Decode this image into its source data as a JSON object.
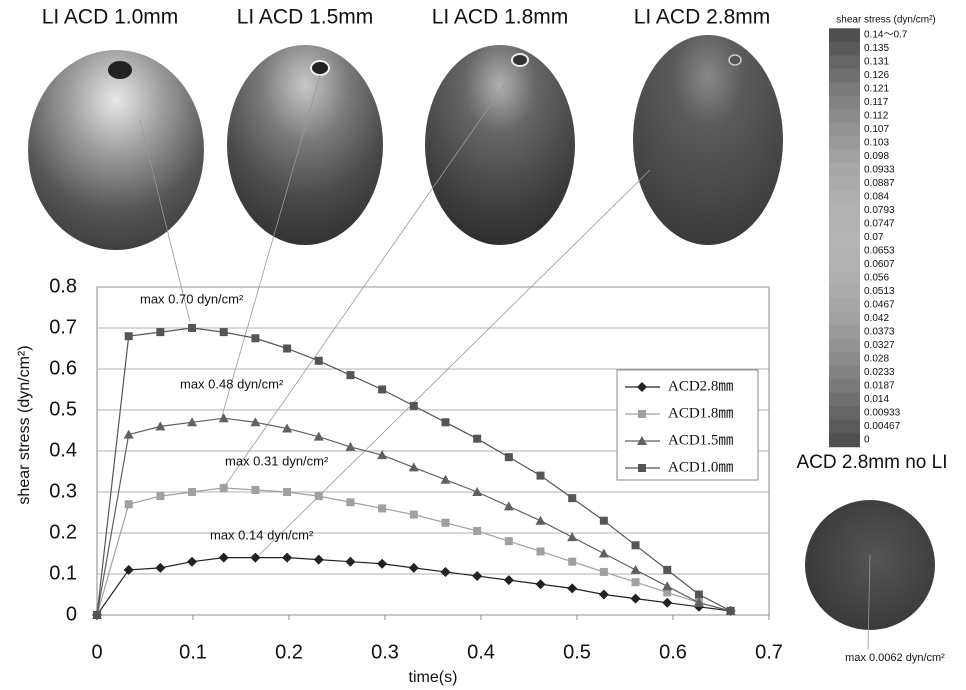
{
  "panels": {
    "titles": [
      "LI ACD 1.0mm",
      "LI ACD 1.5mm",
      "LI ACD 1.8mm",
      "LI ACD 2.8mm"
    ],
    "no_li_title": "ACD 2.8mm no LI",
    "no_li_max": "max 0.0062 dyn/cm²"
  },
  "colorbar": {
    "title": "shear stress (dyn/cm²)",
    "labels": [
      "0.14～0.7",
      "0.135",
      "0.131",
      "0.126",
      "0.121",
      "0.117",
      "0.112",
      "0.107",
      "0.103",
      "0.098",
      "0.0933",
      "0.0887",
      "0.084",
      "0.0793",
      "0.0747",
      "0.07",
      "0.0653",
      "0.0607",
      "0.056",
      "0.0513",
      "0.0467",
      "0.042",
      "0.0373",
      "0.0327",
      "0.028",
      "0.0233",
      "0.0187",
      "0.014",
      "0.00933",
      "0.00467",
      "0"
    ]
  },
  "chart_data": {
    "type": "line",
    "xlabel": "time(s)",
    "ylabel": "shear stress (dyn/cm²)",
    "x": [
      0,
      0.033,
      0.066,
      0.099,
      0.132,
      0.165,
      0.198,
      0.231,
      0.264,
      0.297,
      0.33,
      0.363,
      0.396,
      0.429,
      0.462,
      0.495,
      0.528,
      0.561,
      0.594,
      0.627,
      0.66
    ],
    "xlim": [
      0,
      0.7
    ],
    "xticks": [
      0,
      0.1,
      0.2,
      0.3,
      0.4,
      0.5,
      0.6,
      0.7
    ],
    "ylim": [
      0,
      0.8
    ],
    "yticks": [
      0,
      0.1,
      0.2,
      0.3,
      0.4,
      0.5,
      0.6,
      0.7,
      0.8
    ],
    "grid": true,
    "series": [
      {
        "name": "ACD2.8㎜",
        "color": "#222222",
        "marker": "diamond",
        "values": [
          0,
          0.11,
          0.115,
          0.13,
          0.14,
          0.14,
          0.14,
          0.135,
          0.13,
          0.125,
          0.115,
          0.105,
          0.095,
          0.085,
          0.075,
          0.065,
          0.05,
          0.04,
          0.03,
          0.02,
          0.01
        ]
      },
      {
        "name": "ACD1.8㎜",
        "color": "#a0a0a0",
        "marker": "square",
        "values": [
          0,
          0.27,
          0.29,
          0.3,
          0.31,
          0.305,
          0.3,
          0.29,
          0.275,
          0.26,
          0.245,
          0.225,
          0.205,
          0.18,
          0.155,
          0.13,
          0.105,
          0.08,
          0.055,
          0.03,
          0.01
        ]
      },
      {
        "name": "ACD1.5㎜",
        "color": "#606060",
        "marker": "triangle",
        "values": [
          0,
          0.44,
          0.46,
          0.47,
          0.48,
          0.47,
          0.455,
          0.435,
          0.41,
          0.39,
          0.36,
          0.33,
          0.3,
          0.265,
          0.23,
          0.19,
          0.15,
          0.11,
          0.07,
          0.03,
          0.01
        ]
      },
      {
        "name": "ACD1.0㎜",
        "color": "#555555",
        "marker": "square",
        "values": [
          0,
          0.68,
          0.69,
          0.7,
          0.69,
          0.675,
          0.65,
          0.62,
          0.585,
          0.55,
          0.51,
          0.47,
          0.43,
          0.385,
          0.34,
          0.285,
          0.23,
          0.17,
          0.11,
          0.05,
          0.01
        ]
      }
    ],
    "annotations": [
      "max 0.70 dyn/cm²",
      "max 0.48 dyn/cm²",
      "max 0.31 dyn/cm²",
      "max 0.14 dyn/cm²"
    ]
  }
}
